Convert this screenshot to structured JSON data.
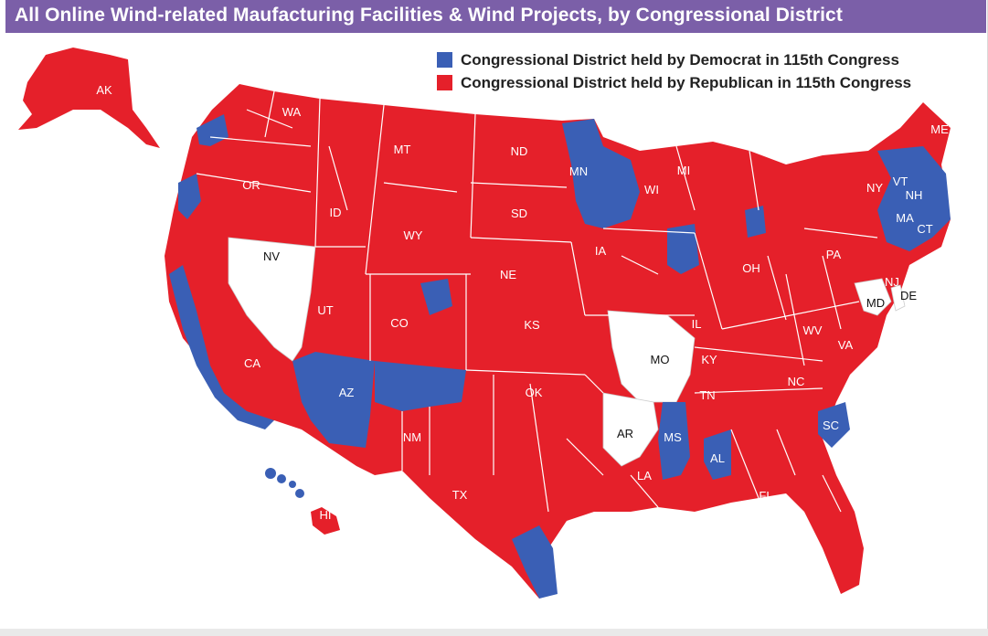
{
  "title": "All Online Wind-related Maufacturing Facilities & Wind Projects, by Congressional District",
  "colors": {
    "title_bar": "#7b5fa8",
    "democrat": "#3a5fb5",
    "republican": "#e5202a",
    "no_district": "#ffffff",
    "border": "#ffffff"
  },
  "legend": [
    {
      "label": "Congressional District held by Democrat in 115th Congress",
      "party": "democrat"
    },
    {
      "label": "Congressional District held by Republican in 115th Congress",
      "party": "republican"
    }
  ],
  "states": [
    {
      "abbr": "AK",
      "party": "republican"
    },
    {
      "abbr": "WA",
      "party": "republican"
    },
    {
      "abbr": "OR",
      "party": "republican"
    },
    {
      "abbr": "CA",
      "party": "republican"
    },
    {
      "abbr": "NV",
      "party": "none"
    },
    {
      "abbr": "ID",
      "party": "republican"
    },
    {
      "abbr": "MT",
      "party": "republican"
    },
    {
      "abbr": "WY",
      "party": "republican"
    },
    {
      "abbr": "UT",
      "party": "republican"
    },
    {
      "abbr": "CO",
      "party": "republican"
    },
    {
      "abbr": "AZ",
      "party": "democrat"
    },
    {
      "abbr": "NM",
      "party": "republican"
    },
    {
      "abbr": "ND",
      "party": "republican"
    },
    {
      "abbr": "SD",
      "party": "republican"
    },
    {
      "abbr": "NE",
      "party": "republican"
    },
    {
      "abbr": "KS",
      "party": "republican"
    },
    {
      "abbr": "OK",
      "party": "republican"
    },
    {
      "abbr": "TX",
      "party": "republican"
    },
    {
      "abbr": "MN",
      "party": "democrat"
    },
    {
      "abbr": "IA",
      "party": "republican"
    },
    {
      "abbr": "MO",
      "party": "none"
    },
    {
      "abbr": "AR",
      "party": "none"
    },
    {
      "abbr": "LA",
      "party": "republican"
    },
    {
      "abbr": "WI",
      "party": "republican"
    },
    {
      "abbr": "IL",
      "party": "republican"
    },
    {
      "abbr": "MS",
      "party": "democrat"
    },
    {
      "abbr": "MI",
      "party": "republican"
    },
    {
      "abbr": "OH",
      "party": "republican"
    },
    {
      "abbr": "KY",
      "party": "republican"
    },
    {
      "abbr": "TN",
      "party": "republican"
    },
    {
      "abbr": "AL",
      "party": "democrat"
    },
    {
      "abbr": "FL",
      "party": "republican"
    },
    {
      "abbr": "WV",
      "party": "republican"
    },
    {
      "abbr": "VA",
      "party": "republican"
    },
    {
      "abbr": "NC",
      "party": "republican"
    },
    {
      "abbr": "SC",
      "party": "democrat"
    },
    {
      "abbr": "PA",
      "party": "republican"
    },
    {
      "abbr": "NY",
      "party": "republican"
    },
    {
      "abbr": "VT",
      "party": "democrat"
    },
    {
      "abbr": "NH",
      "party": "democrat"
    },
    {
      "abbr": "ME",
      "party": "republican"
    },
    {
      "abbr": "MA",
      "party": "democrat"
    },
    {
      "abbr": "CT",
      "party": "democrat"
    },
    {
      "abbr": "NJ",
      "party": "republican"
    },
    {
      "abbr": "DE",
      "party": "none"
    },
    {
      "abbr": "MD",
      "party": "none"
    },
    {
      "abbr": "HI",
      "party": "democrat"
    }
  ]
}
